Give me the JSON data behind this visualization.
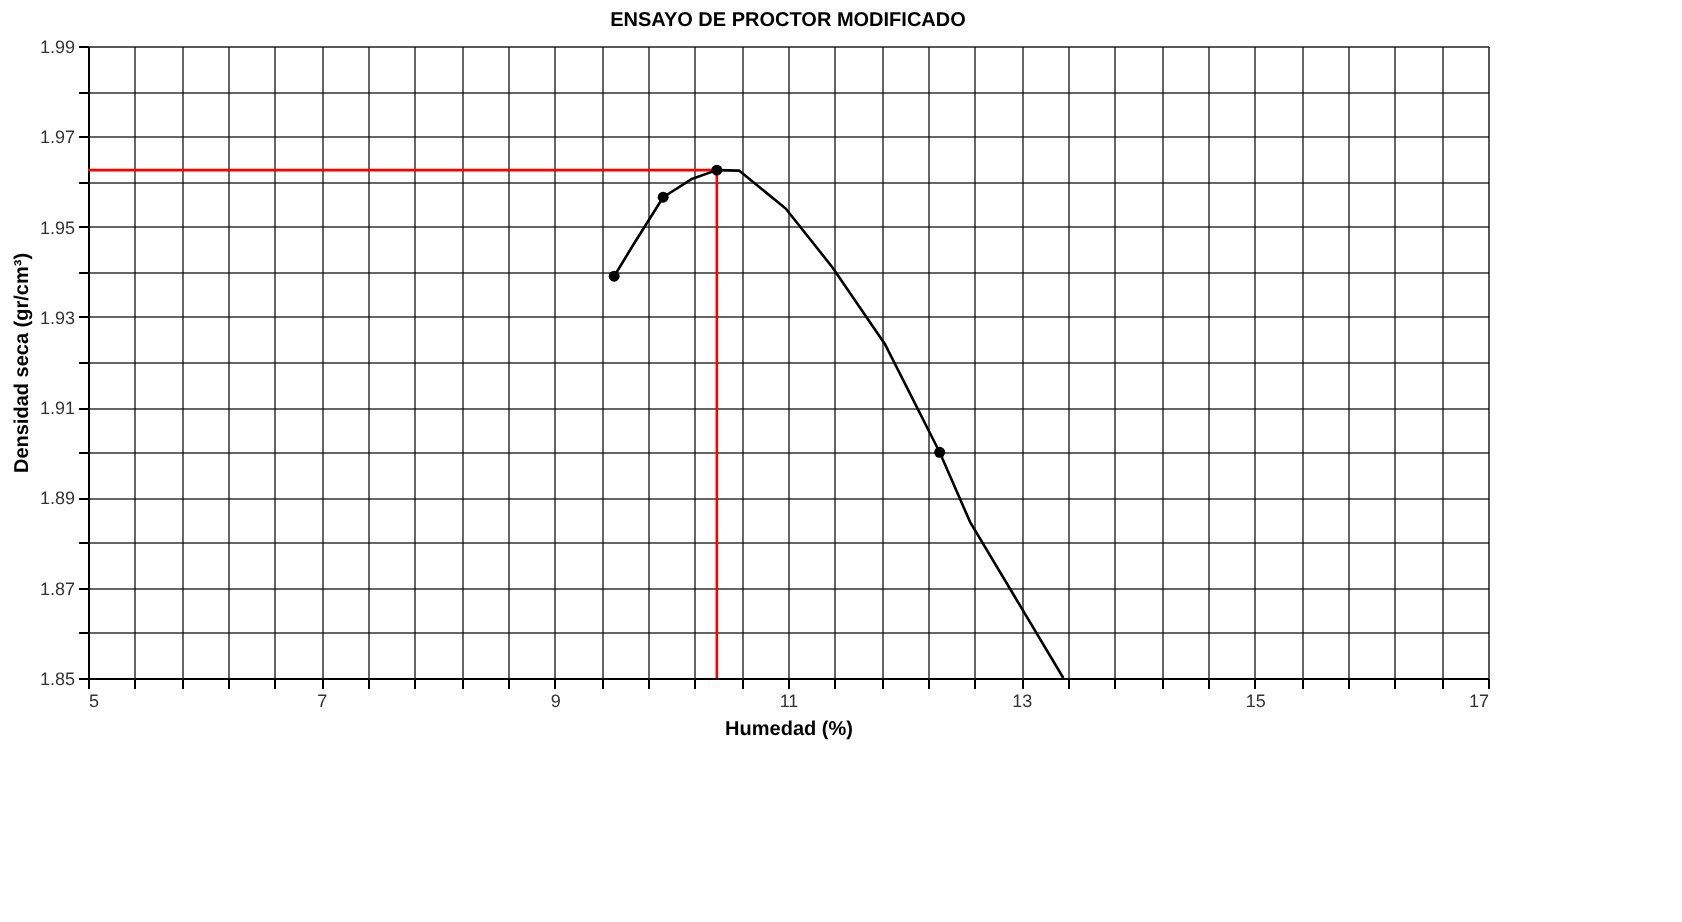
{
  "chart_data": {
    "type": "line",
    "title": "ENSAYO DE PROCTOR MODIFICADO",
    "xlabel": "Humedad (%)",
    "ylabel": "Densidad seca (gr/cm³)",
    "xlim": [
      5,
      17
    ],
    "ylim": [
      1.85,
      1.99
    ],
    "xticks": [
      5,
      {
        "value": 5.4,
        "label": null
      },
      {
        "value": 5.8,
        "label": null
      },
      {
        "value": 6.2,
        "label": null
      },
      {
        "value": 6.6,
        "label": null
      },
      7,
      {
        "value": 7.4,
        "label": null
      },
      {
        "value": 7.8,
        "label": null
      },
      {
        "value": 8.2,
        "label": null
      },
      {
        "value": 8.6,
        "label": null
      },
      9,
      {
        "value": 9.4,
        "label": null
      },
      {
        "value": 9.8,
        "label": null
      },
      {
        "value": 10.2,
        "label": null
      },
      {
        "value": 10.6,
        "label": null
      },
      11,
      {
        "value": 11.4,
        "label": null
      },
      {
        "value": 11.8,
        "label": null
      },
      {
        "value": 12.2,
        "label": null
      },
      {
        "value": 12.6,
        "label": null
      },
      13,
      {
        "value": 13.4,
        "label": null
      },
      {
        "value": 13.8,
        "label": null
      },
      {
        "value": 14.2,
        "label": null
      },
      {
        "value": 14.6,
        "label": null
      },
      15,
      {
        "value": 15.4,
        "label": null
      },
      {
        "value": 15.8,
        "label": null
      },
      {
        "value": 16.2,
        "label": null
      },
      {
        "value": 16.6,
        "label": null
      },
      17
    ],
    "yticks": [
      1.85,
      {
        "value": 1.86,
        "label": null
      },
      1.87,
      {
        "value": 1.88,
        "label": null
      },
      1.89,
      {
        "value": 1.9,
        "label": null
      },
      1.91,
      {
        "value": 1.92,
        "label": null
      },
      1.93,
      {
        "value": 1.94,
        "label": null
      },
      1.95,
      {
        "value": 1.96,
        "label": null
      },
      1.97,
      {
        "value": 1.98,
        "label": null
      },
      1.99
    ],
    "grid": true,
    "legend": false,
    "series": [
      {
        "type": "line",
        "color": "#ff0000",
        "x": [
          5,
          10.39,
          10.39
        ],
        "values": [
          1.9625,
          1.9625,
          1.85
        ],
        "marker": "none"
      },
      {
        "type": "line",
        "color": "#000000",
        "x": [
          9.51,
          9.67,
          9.93,
          10.18,
          10.39,
          10.58,
          10.98,
          11.38,
          11.83,
          12.3,
          12.56,
          13.36
        ],
        "values": [
          1.939,
          1.9458,
          1.9565,
          1.9606,
          1.9625,
          1.9624,
          1.954,
          1.941,
          1.924,
          1.9,
          1.8846,
          1.85
        ],
        "marker": "none"
      },
      {
        "type": "scatter",
        "color": "#000000",
        "x": [
          9.51,
          9.93,
          10.39,
          12.3
        ],
        "values": [
          1.939,
          1.9565,
          1.9625,
          1.9
        ],
        "marker": "circle"
      }
    ]
  }
}
